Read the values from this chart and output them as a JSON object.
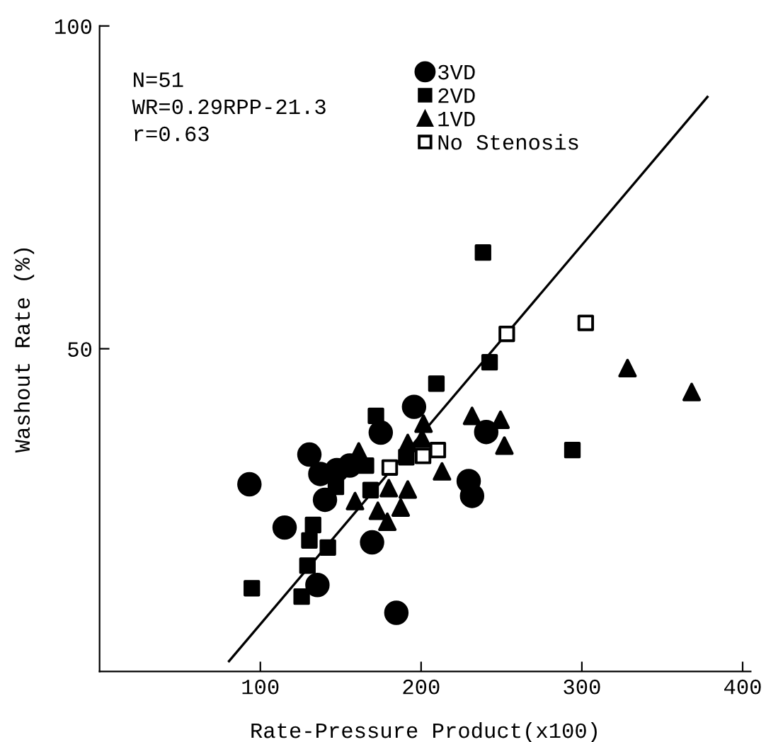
{
  "chart_data": {
    "type": "scatter",
    "xlabel": "Rate-Pressure Product(x100)",
    "ylabel": "Washout Rate (%)",
    "xlim": [
      0,
      405
    ],
    "xticks": [
      100,
      200,
      300,
      400
    ],
    "ylim": [
      0,
      100
    ],
    "yticks": [
      50,
      100
    ],
    "grid": false,
    "legend": "top",
    "annotations": [
      "N=51",
      "WR=0.29RPP-21.3",
      "r=0.63"
    ],
    "series": [
      {
        "name": "3VD",
        "color": "#000000",
        "marker": "circle",
        "x": [
          93.2,
          115.1,
          130.5,
          137.3,
          140.2,
          135.5,
          147.6,
          155.6,
          169.5,
          174.9,
          184.6,
          195.6,
          229.6,
          231.7,
          240.5
        ],
        "values": [
          29.0,
          22.3,
          33.6,
          30.6,
          26.6,
          13.4,
          31.2,
          31.9,
          20.0,
          37.0,
          9.1,
          41.0,
          29.5,
          27.2,
          37.1
        ]
      },
      {
        "name": "2VD",
        "color": "#000000",
        "marker": "square",
        "x": [
          94.7,
          125.7,
          129.3,
          130.5,
          132.8,
          142.0,
          147.0,
          165.7,
          168.6,
          171.9,
          190.8,
          209.5,
          238.5,
          242.6,
          294.1
        ],
        "values": [
          12.9,
          11.6,
          16.4,
          20.3,
          22.7,
          19.2,
          28.6,
          31.9,
          28.1,
          39.6,
          33.2,
          44.6,
          64.9,
          47.9,
          34.3
        ]
      },
      {
        "name": "1VD",
        "color": "#000000",
        "marker": "triangle",
        "x": [
          161.2,
          158.9,
          173.1,
          179.0,
          179.9,
          187.3,
          191.7,
          191.7,
          200.6,
          201.5,
          213.0,
          231.7,
          249.4,
          251.8,
          328.4,
          368.3
        ],
        "values": [
          34.1,
          26.4,
          24.9,
          23.2,
          28.4,
          25.4,
          35.4,
          28.2,
          36.1,
          38.4,
          31.0,
          39.6,
          39.0,
          35.0,
          47.0,
          43.3
        ]
      },
      {
        "name": "No Stenosis",
        "color": "#ffffff",
        "marker": "square",
        "x": [
          180.5,
          201.2,
          210.4,
          253.3,
          302.4
        ],
        "values": [
          31.6,
          33.4,
          34.3,
          52.3,
          54.0
        ]
      },
      {
        "type": "line",
        "color": "#000000",
        "marker": "none",
        "line_style": "solid",
        "x": [
          80.5,
          378.1
        ],
        "values": [
          1.6,
          89.0
        ]
      }
    ]
  }
}
